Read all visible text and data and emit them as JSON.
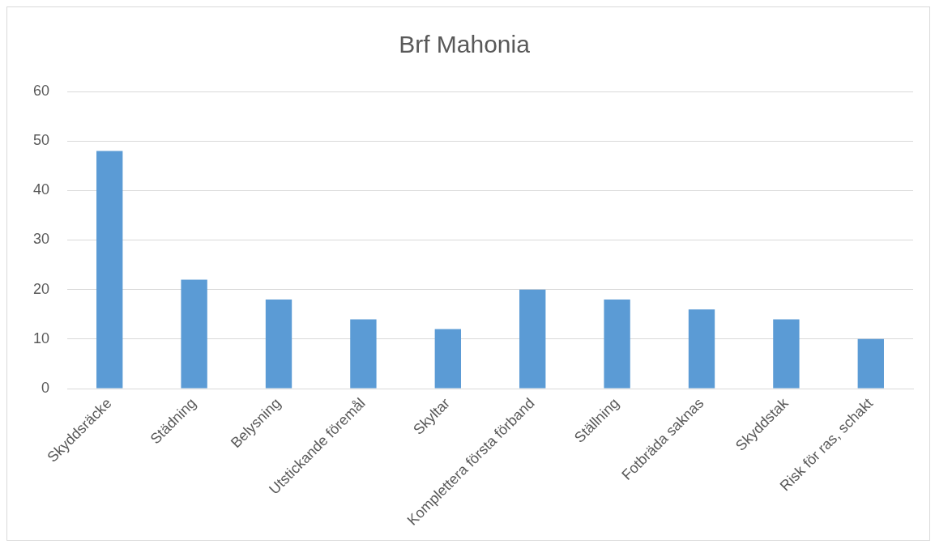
{
  "chart_data": {
    "type": "bar",
    "title": "Brf Mahonia",
    "categories": [
      "Skyddsräcke",
      "Städning",
      "Belysning",
      "Utstickande föremål",
      "Skyltar",
      "Komplettera första förband",
      "Ställning",
      "Fotbräda saknas",
      "Skyddstak",
      "Risk för ras, schakt"
    ],
    "values": [
      48,
      22,
      18,
      14,
      12,
      20,
      18,
      16,
      14,
      10
    ],
    "color": "#5b9bd5",
    "ylim": [
      0,
      60
    ],
    "yticks": [
      0,
      10,
      20,
      30,
      40,
      50,
      60
    ],
    "grid": "y",
    "legend": false
  }
}
